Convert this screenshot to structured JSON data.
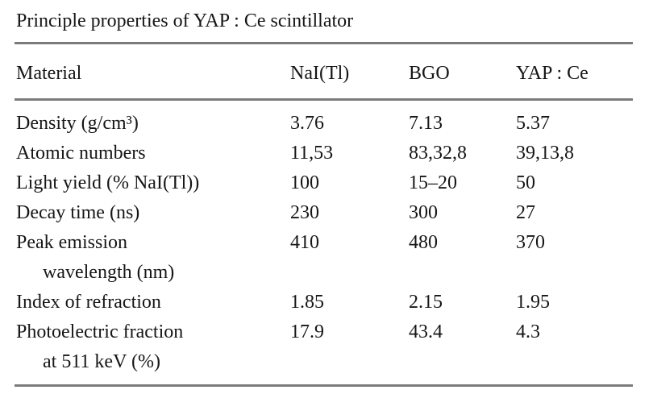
{
  "page": {
    "background_color": "#ffffff",
    "text_color": "#161616",
    "rule_color": "#7b7b7b"
  },
  "table": {
    "title": "Principle properties of YAP : Ce scintillator",
    "columns": [
      "Material",
      "NaI(Tl)",
      "BGO",
      "YAP : Ce"
    ],
    "rows": [
      {
        "label": "Density (g/cm³)",
        "values": [
          "3.76",
          "7.13",
          "5.37"
        ]
      },
      {
        "label": "Atomic numbers",
        "values": [
          "11,53",
          "83,32,8",
          "39,13,8"
        ]
      },
      {
        "label": "Light yield (% NaI(Tl))",
        "values": [
          "100",
          "15–20",
          "50"
        ]
      },
      {
        "label": "Decay time (ns)",
        "values": [
          "230",
          "300",
          "27"
        ]
      },
      {
        "label": "Peak emission",
        "label_cont": "wavelength (nm)",
        "values": [
          "410",
          "480",
          "370"
        ]
      },
      {
        "label": "Index of refraction",
        "values": [
          "1.85",
          "2.15",
          "1.95"
        ]
      },
      {
        "label": "Photoelectric fraction",
        "label_cont": "at 511 keV (%)",
        "values": [
          "17.9",
          "43.4",
          "4.3"
        ]
      }
    ]
  }
}
